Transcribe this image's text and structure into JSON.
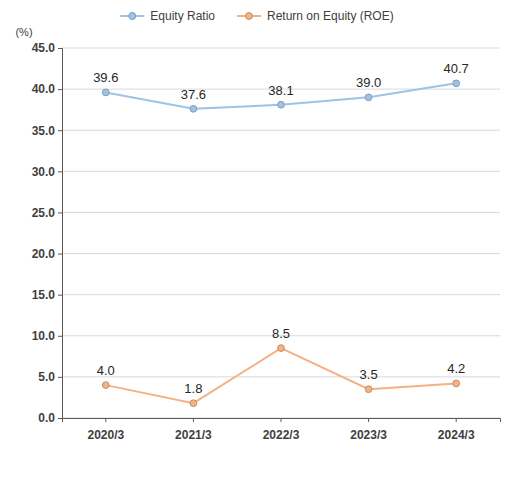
{
  "chart_data": {
    "type": "line",
    "y_label": "(%)",
    "categories": [
      "2020/3",
      "2021/3",
      "2022/3",
      "2023/3",
      "2024/3"
    ],
    "series": [
      {
        "name": "Equity Ratio",
        "color": "#9dc3e6",
        "marker": "circle",
        "values": [
          39.6,
          37.6,
          38.1,
          39.0,
          40.7
        ],
        "value_labels": [
          "39.6",
          "37.6",
          "38.1",
          "39.0",
          "40.7"
        ]
      },
      {
        "name": "Return on Equity (ROE)",
        "color": "#f4b183",
        "marker": "circle",
        "values": [
          4.0,
          1.8,
          8.5,
          3.5,
          4.2
        ],
        "value_labels": [
          "4.0",
          "1.8",
          "8.5",
          "3.5",
          "4.2"
        ]
      }
    ],
    "ylim": [
      0,
      45
    ],
    "yticks": [
      {
        "value": 0,
        "label": "0.0"
      },
      {
        "value": 5,
        "label": "5.0"
      },
      {
        "value": 10,
        "label": "10.0"
      },
      {
        "value": 15,
        "label": "15.0"
      },
      {
        "value": 20,
        "label": "20.0"
      },
      {
        "value": 25,
        "label": "25.0"
      },
      {
        "value": 30,
        "label": "30.0"
      },
      {
        "value": 35,
        "label": "35.0"
      },
      {
        "value": 40,
        "label": "40.0"
      },
      {
        "value": 45,
        "label": "45.0"
      }
    ],
    "grid": true,
    "legend": "top",
    "data_labels": true
  }
}
